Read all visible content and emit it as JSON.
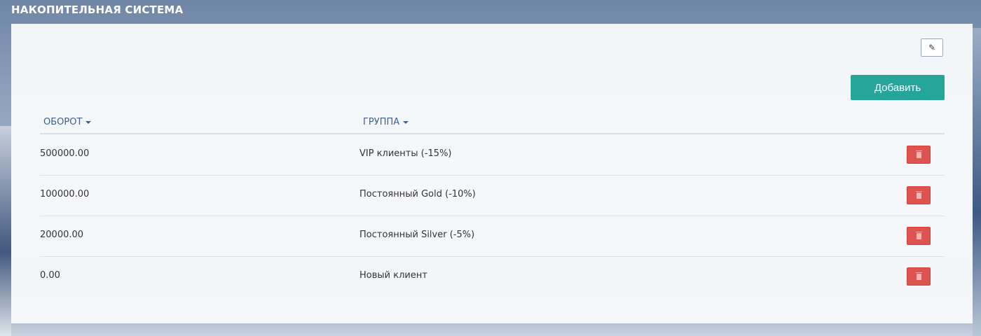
{
  "page": {
    "title": "НАКОПИТЕЛЬНАЯ СИСТЕМА"
  },
  "toolbar": {
    "edit_icon": "pencil-icon",
    "add_label": "Добавить",
    "add_color": "#26a69a"
  },
  "table": {
    "columns": [
      {
        "label": "ОБОРОТ",
        "sort": "caret-down"
      },
      {
        "label": "ГРУППА",
        "sort": "caret-down"
      }
    ],
    "rows": [
      {
        "turnover": "500000.00",
        "group": "VIP клиенты (-15%)"
      },
      {
        "turnover": "100000.00",
        "group": "Постоянный Gold (-10%)"
      },
      {
        "turnover": "20000.00",
        "group": "Постоянный Silver (-5%)"
      },
      {
        "turnover": "0.00",
        "group": "Новый клиент"
      }
    ],
    "delete_icon": "trash-icon",
    "delete_color": "#de524f"
  }
}
